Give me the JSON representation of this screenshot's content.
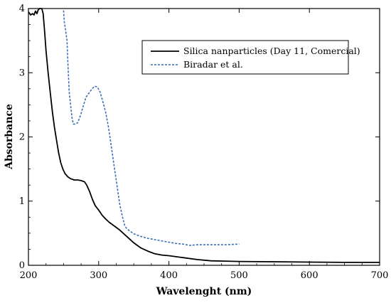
{
  "chart_data": {
    "type": "line",
    "title": "",
    "xlabel": "Wavelenght (nm)",
    "ylabel": "Absorbance",
    "xlim": [
      200,
      700
    ],
    "ylim": [
      0,
      4
    ],
    "xticks": [
      "200",
      "300",
      "400",
      "500",
      "600",
      "700"
    ],
    "yticks": [
      "0",
      "1",
      "2",
      "3",
      "4"
    ],
    "grid": false,
    "legend_position": "top-right",
    "series": [
      {
        "name": "Silica nanparticles (Day 11, Comercial)",
        "color": "#000000",
        "style": "solid",
        "points": [
          [
            200,
            3.95
          ],
          [
            203,
            3.9
          ],
          [
            206,
            3.92
          ],
          [
            208,
            3.9
          ],
          [
            210,
            3.96
          ],
          [
            212,
            3.92
          ],
          [
            214,
            3.98
          ],
          [
            216,
            4.0
          ],
          [
            219,
            4.0
          ],
          [
            221,
            3.92
          ],
          [
            223,
            3.65
          ],
          [
            225,
            3.35
          ],
          [
            228,
            3.0
          ],
          [
            231,
            2.7
          ],
          [
            234,
            2.4
          ],
          [
            237,
            2.15
          ],
          [
            240,
            1.95
          ],
          [
            243,
            1.75
          ],
          [
            246,
            1.6
          ],
          [
            249,
            1.5
          ],
          [
            252,
            1.43
          ],
          [
            256,
            1.38
          ],
          [
            260,
            1.35
          ],
          [
            265,
            1.33
          ],
          [
            270,
            1.33
          ],
          [
            275,
            1.32
          ],
          [
            280,
            1.3
          ],
          [
            283,
            1.25
          ],
          [
            287,
            1.15
          ],
          [
            291,
            1.03
          ],
          [
            295,
            0.93
          ],
          [
            300,
            0.86
          ],
          [
            305,
            0.78
          ],
          [
            310,
            0.72
          ],
          [
            315,
            0.67
          ],
          [
            320,
            0.63
          ],
          [
            330,
            0.55
          ],
          [
            340,
            0.45
          ],
          [
            350,
            0.35
          ],
          [
            360,
            0.27
          ],
          [
            370,
            0.22
          ],
          [
            380,
            0.18
          ],
          [
            390,
            0.16
          ],
          [
            400,
            0.15
          ],
          [
            420,
            0.12
          ],
          [
            440,
            0.09
          ],
          [
            460,
            0.07
          ],
          [
            480,
            0.065
          ],
          [
            500,
            0.06
          ],
          [
            550,
            0.055
          ],
          [
            600,
            0.05
          ],
          [
            650,
            0.045
          ],
          [
            700,
            0.045
          ]
        ]
      },
      {
        "name": "Biradar et al.",
        "color": "#3a6fb5",
        "style": "dashed",
        "points": [
          [
            250,
            3.97
          ],
          [
            251,
            3.8
          ],
          [
            253,
            3.65
          ],
          [
            255,
            3.5
          ],
          [
            256,
            3.2
          ],
          [
            258,
            2.7
          ],
          [
            260,
            2.5
          ],
          [
            262,
            2.3
          ],
          [
            264,
            2.2
          ],
          [
            267,
            2.2
          ],
          [
            270,
            2.22
          ],
          [
            274,
            2.33
          ],
          [
            278,
            2.48
          ],
          [
            282,
            2.62
          ],
          [
            286,
            2.68
          ],
          [
            290,
            2.74
          ],
          [
            294,
            2.79
          ],
          [
            298,
            2.78
          ],
          [
            302,
            2.7
          ],
          [
            306,
            2.55
          ],
          [
            310,
            2.38
          ],
          [
            314,
            2.15
          ],
          [
            318,
            1.85
          ],
          [
            322,
            1.55
          ],
          [
            326,
            1.25
          ],
          [
            330,
            0.95
          ],
          [
            334,
            0.75
          ],
          [
            337,
            0.62
          ],
          [
            340,
            0.57
          ],
          [
            345,
            0.53
          ],
          [
            350,
            0.49
          ],
          [
            360,
            0.45
          ],
          [
            370,
            0.42
          ],
          [
            380,
            0.4
          ],
          [
            390,
            0.38
          ],
          [
            400,
            0.36
          ],
          [
            410,
            0.34
          ],
          [
            420,
            0.33
          ],
          [
            430,
            0.31
          ],
          [
            440,
            0.32
          ],
          [
            460,
            0.32
          ],
          [
            480,
            0.32
          ],
          [
            500,
            0.33
          ]
        ]
      }
    ]
  }
}
